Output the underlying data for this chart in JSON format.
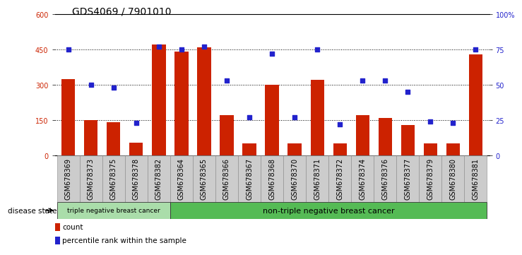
{
  "title": "GDS4069 / 7901010",
  "samples": [
    "GSM678369",
    "GSM678373",
    "GSM678375",
    "GSM678378",
    "GSM678382",
    "GSM678364",
    "GSM678365",
    "GSM678366",
    "GSM678367",
    "GSM678368",
    "GSM678370",
    "GSM678371",
    "GSM678372",
    "GSM678374",
    "GSM678376",
    "GSM678377",
    "GSM678379",
    "GSM678380",
    "GSM678381"
  ],
  "bar_values": [
    325,
    150,
    140,
    55,
    470,
    440,
    460,
    170,
    50,
    300,
    50,
    320,
    50,
    170,
    160,
    130,
    50,
    50,
    430
  ],
  "percentile_values": [
    75,
    50,
    48,
    23,
    77,
    75,
    77,
    53,
    27,
    72,
    27,
    75,
    22,
    53,
    53,
    45,
    24,
    23,
    75
  ],
  "bar_color": "#cc2200",
  "dot_color": "#2222cc",
  "left_ylim": [
    0,
    600
  ],
  "right_ylim": [
    0,
    100
  ],
  "left_yticks": [
    0,
    150,
    300,
    450,
    600
  ],
  "right_yticks": [
    0,
    25,
    50,
    75,
    100
  ],
  "right_yticklabels": [
    "0",
    "25",
    "50",
    "75",
    "100%"
  ],
  "hline_positions": [
    150,
    300,
    450
  ],
  "group1_label": "triple negative breast cancer",
  "group2_label": "non-triple negative breast cancer",
  "group1_count": 5,
  "disease_state_label": "disease state",
  "legend_count_label": "count",
  "legend_percentile_label": "percentile rank within the sample",
  "bg_color": "#ffffff",
  "tick_label_bg": "#cccccc",
  "group1_bg": "#aaddaa",
  "group2_bg": "#55bb55",
  "title_fontsize": 10,
  "tick_fontsize": 7
}
